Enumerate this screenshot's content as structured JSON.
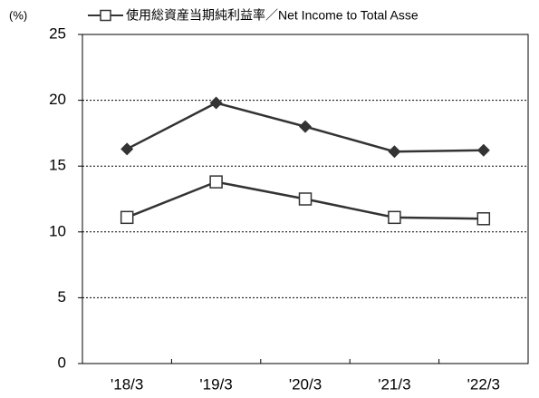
{
  "chart_data": {
    "type": "line",
    "y_label": "(%)",
    "categories": [
      "'18/3",
      "'19/3",
      "'20/3",
      "'21/3",
      "'22/3"
    ],
    "series": [
      {
        "color": "#333333",
        "marker": "diamond",
        "values": [
          16.3,
          19.8,
          18.0,
          16.1,
          16.2
        ]
      },
      {
        "name": "使用総資産当期純利益率／Net Income to Total Asse",
        "color": "#333333",
        "marker": "square",
        "values": [
          11.1,
          13.8,
          12.5,
          11.1,
          11.0
        ]
      }
    ],
    "ylim": [
      0,
      25
    ],
    "yticks": [
      0,
      5,
      10,
      15,
      20,
      25
    ],
    "grid": true
  }
}
